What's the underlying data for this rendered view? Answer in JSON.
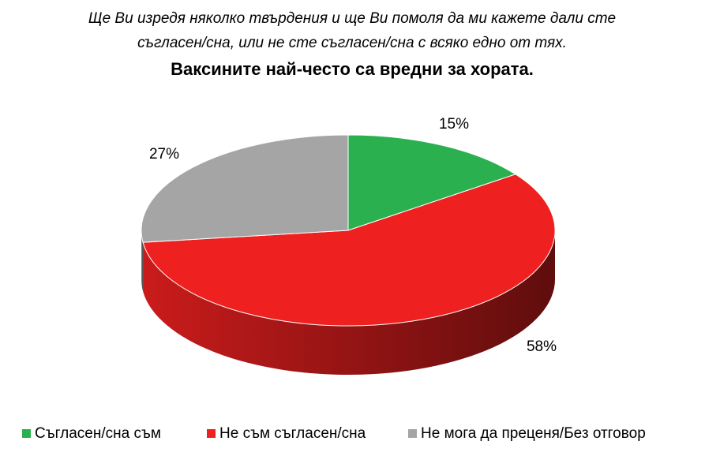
{
  "chart_data": {
    "type": "pie",
    "subtitle": [
      "Ще Ви изредя няколко твърдения и ще Ви помоля да ми кажете дали сте",
      "съгласен/сна, или не сте съгласен/сна с всяко едно от тях."
    ],
    "title": "Ваксините най-често са вредни за хората.",
    "categories": [
      "Съгласен/сна съм",
      "Не съм съгласен/сна",
      "Не мога да преценя/Без отговор"
    ],
    "values": [
      15,
      58,
      27
    ],
    "value_labels": [
      "15%",
      "58%",
      "27%"
    ],
    "colors": [
      "#2bb04f",
      "#ee2020",
      "#a5a5a5"
    ],
    "legend": "bottom"
  }
}
